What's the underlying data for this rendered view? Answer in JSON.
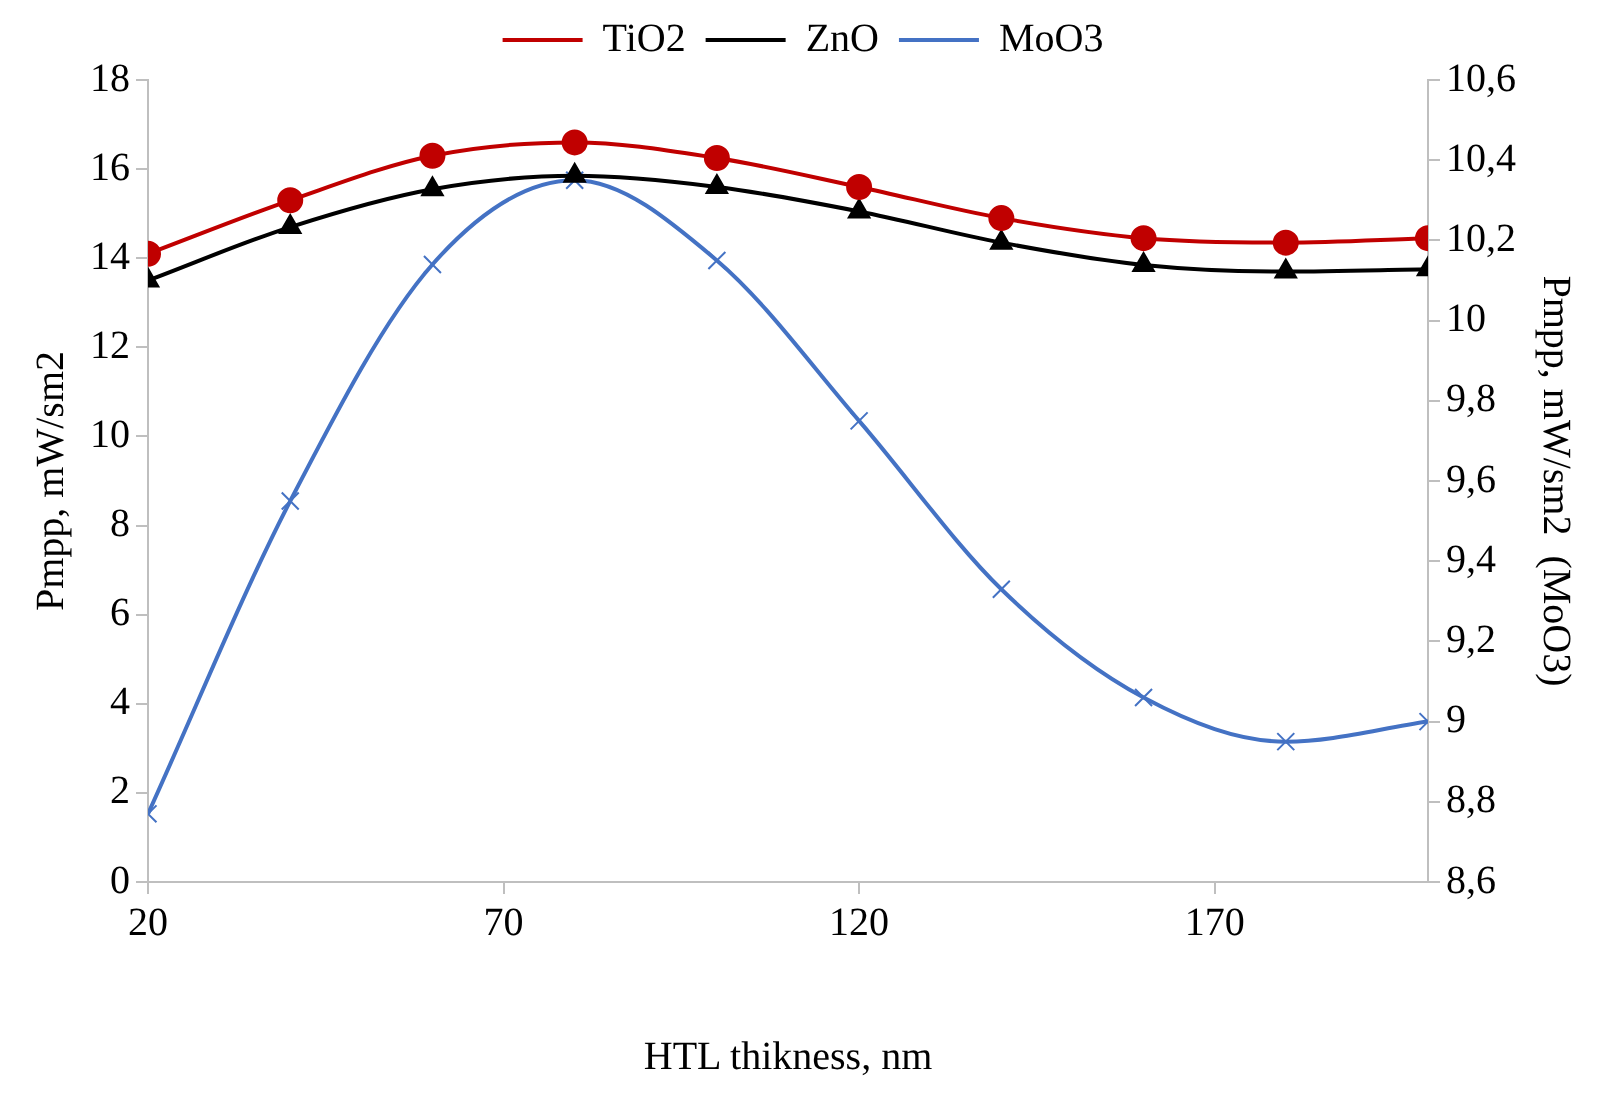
{
  "chart_data": {
    "type": "line",
    "xlabel": "HTL thikness, nm",
    "ylabel": "Pmpp, mW/sm2",
    "y2label": "Pmpp, mW/sm2  (MoO3)",
    "x": [
      20,
      40,
      60,
      80,
      100,
      120,
      140,
      160,
      180,
      200
    ],
    "series": [
      {
        "name": "TiO2",
        "color": "#c00000",
        "marker": "circle",
        "values": [
          14.1,
          15.3,
          16.3,
          16.6,
          16.25,
          15.6,
          14.9,
          14.45,
          14.35,
          14.45
        ]
      },
      {
        "name": "ZnO",
        "color": "#000000",
        "marker": "triangle",
        "values": [
          13.5,
          14.7,
          15.55,
          15.85,
          15.6,
          15.05,
          14.35,
          13.85,
          13.7,
          13.75
        ]
      },
      {
        "name": "MoO3",
        "color": "#4472c4",
        "marker": "cross",
        "axis": "y2",
        "values": [
          8.77,
          9.55,
          10.14,
          10.35,
          10.15,
          9.75,
          9.33,
          9.06,
          8.95,
          9.0
        ]
      }
    ],
    "xlim": [
      20,
      200
    ],
    "xticks": [
      20,
      70,
      120,
      170
    ],
    "ylim": [
      0,
      18
    ],
    "yticks": [
      0,
      2,
      4,
      6,
      8,
      10,
      12,
      14,
      16,
      18
    ],
    "y2lim": [
      8.6,
      10.6
    ],
    "y2ticks": [
      {
        "value": 8.6,
        "label": "8,6"
      },
      {
        "value": 8.8,
        "label": "8,8"
      },
      {
        "value": 9,
        "label": "9"
      },
      {
        "value": 9.2,
        "label": "9,2"
      },
      {
        "value": 9.4,
        "label": "9,4"
      },
      {
        "value": 9.6,
        "label": "9,6"
      },
      {
        "value": 9.8,
        "label": "9,8"
      },
      {
        "value": 10,
        "label": "10"
      },
      {
        "value": 10.2,
        "label": "10,2"
      },
      {
        "value": 10.4,
        "label": "10,4"
      },
      {
        "value": 10.6,
        "label": "10,6"
      }
    ],
    "grid": false,
    "legend": "top"
  }
}
